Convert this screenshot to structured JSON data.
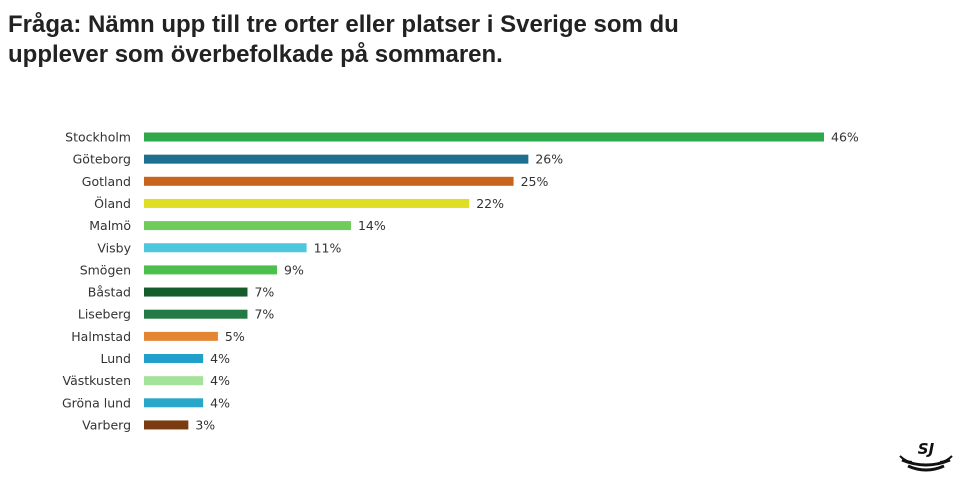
{
  "title_line1": "Fråga: Nämn upp till tre orter eller platser i Sverige som du",
  "title_line2": "upplever som överbefolkade på sommaren.",
  "logo_text": "SJ",
  "chart_data": {
    "type": "bar",
    "orientation": "horizontal",
    "categories": [
      "Stockholm",
      "Göteborg",
      "Gotland",
      "Öland",
      "Malmö",
      "Visby",
      "Smögen",
      "Båstad",
      "Liseberg",
      "Halmstad",
      "Lund",
      "Västkusten",
      "Gröna lund",
      "Varberg"
    ],
    "values": [
      46,
      26,
      25,
      22,
      14,
      11,
      9,
      7,
      7,
      5,
      4,
      4,
      4,
      3
    ],
    "value_labels": [
      "46%",
      "26%",
      "25%",
      "22%",
      "14%",
      "11%",
      "9%",
      "7%",
      "7%",
      "5%",
      "4%",
      "4%",
      "4%",
      "3%"
    ],
    "colors": [
      "#2ea84a",
      "#1b6f8f",
      "#c9621a",
      "#dede24",
      "#6fcc5a",
      "#4ec7dc",
      "#4cc04c",
      "#145c2a",
      "#237a45",
      "#e38533",
      "#21a0cc",
      "#a6e39a",
      "#28a7c9",
      "#7a3b10"
    ],
    "xlim": [
      0,
      46
    ],
    "grid": false,
    "legend": "none"
  }
}
